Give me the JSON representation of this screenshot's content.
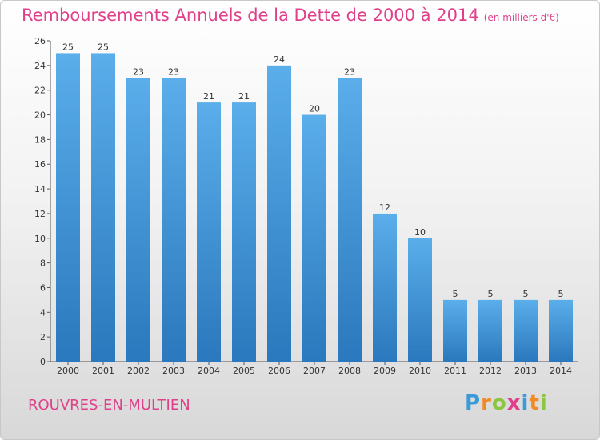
{
  "header": {
    "title": "Remboursements Annuels de la Dette de 2000 à 2014",
    "unit": "(en milliers d'€)"
  },
  "footer": {
    "place": "ROUVRES-EN-MULTIEN",
    "logo": "Proxiti",
    "logo_letters": [
      {
        "ch": "P",
        "color": "#3a9ad9"
      },
      {
        "ch": "r",
        "color": "#f08a24"
      },
      {
        "ch": "o",
        "color": "#8cc63f"
      },
      {
        "ch": "x",
        "color": "#e0408a"
      },
      {
        "ch": "i",
        "color": "#3a9ad9"
      },
      {
        "ch": "t",
        "color": "#f08a24"
      },
      {
        "ch": "i",
        "color": "#8cc63f"
      }
    ]
  },
  "colors": {
    "bar_top": "#5aaeea",
    "bar_bottom": "#2a78bd",
    "accent": "#e0408a"
  },
  "chart_data": {
    "type": "bar",
    "categories": [
      "2000",
      "2001",
      "2002",
      "2003",
      "2004",
      "2005",
      "2006",
      "2007",
      "2008",
      "2009",
      "2010",
      "2011",
      "2012",
      "2013",
      "2014"
    ],
    "values": [
      25,
      25,
      23,
      23,
      21,
      21,
      24,
      20,
      23,
      12,
      10,
      5,
      5,
      5,
      5
    ],
    "title": "Remboursements Annuels de la Dette de 2000 à 2014",
    "subtitle": "(en milliers d'€)",
    "xlabel": "",
    "ylabel": "",
    "ylim": [
      0,
      26
    ],
    "yticks": [
      0,
      2,
      4,
      6,
      8,
      10,
      12,
      14,
      16,
      18,
      20,
      22,
      24,
      26
    ],
    "grid": false,
    "legend": "none"
  }
}
